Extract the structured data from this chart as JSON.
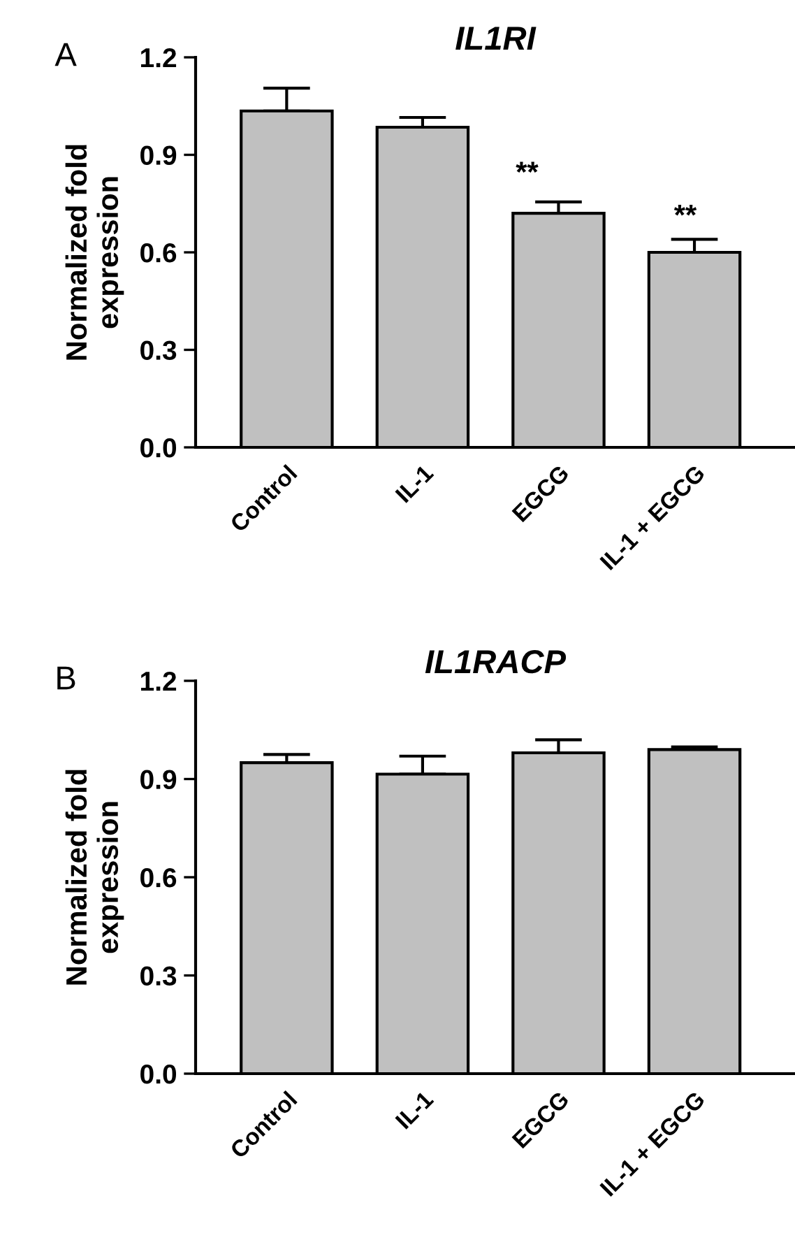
{
  "chart_data": [
    {
      "type": "bar",
      "title": "IL1RI",
      "ylabel": "Normalized fold\nexpression",
      "categories": [
        "Control",
        "IL-1",
        "EGCG",
        "IL-1 + EGCG"
      ],
      "values": [
        1.035,
        0.985,
        0.72,
        0.6
      ],
      "errors": [
        [
          1.035,
          1.105
        ],
        [
          0.985,
          1.015
        ],
        [
          0.72,
          0.755
        ],
        [
          0.6,
          0.64
        ]
      ],
      "color": "#c0c0c0",
      "ylim": [
        0,
        1.2
      ],
      "yticks": [
        {
          "value": 0,
          "label": "0.0"
        },
        0.3,
        0.6,
        0.9,
        1.2
      ],
      "annotations": [
        "A",
        "**",
        "**"
      ]
    },
    {
      "type": "bar",
      "title": "IL1RACP",
      "ylabel": "Normalized fold\nexpression",
      "categories": [
        "Control",
        "IL-1",
        "EGCG",
        "IL-1 + EGCG"
      ],
      "values": [
        0.95,
        0.915,
        0.98,
        0.99
      ],
      "errors": [
        [
          0.95,
          0.975
        ],
        [
          0.915,
          0.97
        ],
        [
          0.98,
          1.02
        ],
        [
          0.99,
          0.998
        ]
      ],
      "color": "#c0c0c0",
      "ylim": [
        0,
        1.2
      ],
      "yticks": [
        {
          "value": 0,
          "label": "0.0"
        },
        0.3,
        0.6,
        0.9,
        1.2
      ],
      "annotations": [
        "B"
      ]
    }
  ]
}
